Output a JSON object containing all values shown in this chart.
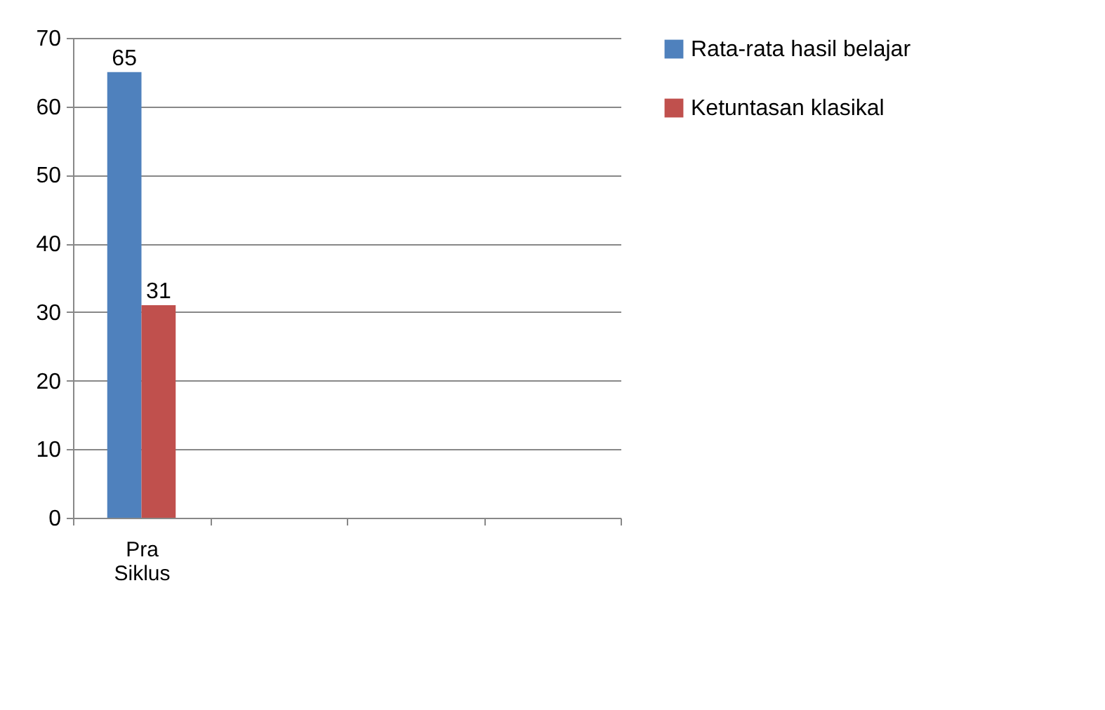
{
  "chart_data": {
    "type": "bar",
    "categories": [
      "Pra Siklus",
      null,
      null,
      null
    ],
    "series": [
      {
        "name": "Rata-rata hasil belajar",
        "color": "#4f81bd",
        "values": [
          65,
          null,
          null,
          null
        ]
      },
      {
        "name": "Ketuntasan klasikal",
        "color": "#c0504d",
        "values": [
          31,
          null,
          null,
          null
        ]
      }
    ],
    "ylim": [
      0,
      70
    ],
    "yticks": [
      0,
      10,
      20,
      30,
      40,
      50,
      60,
      70
    ],
    "grid": "y",
    "legend": "right",
    "data_labels": true
  }
}
